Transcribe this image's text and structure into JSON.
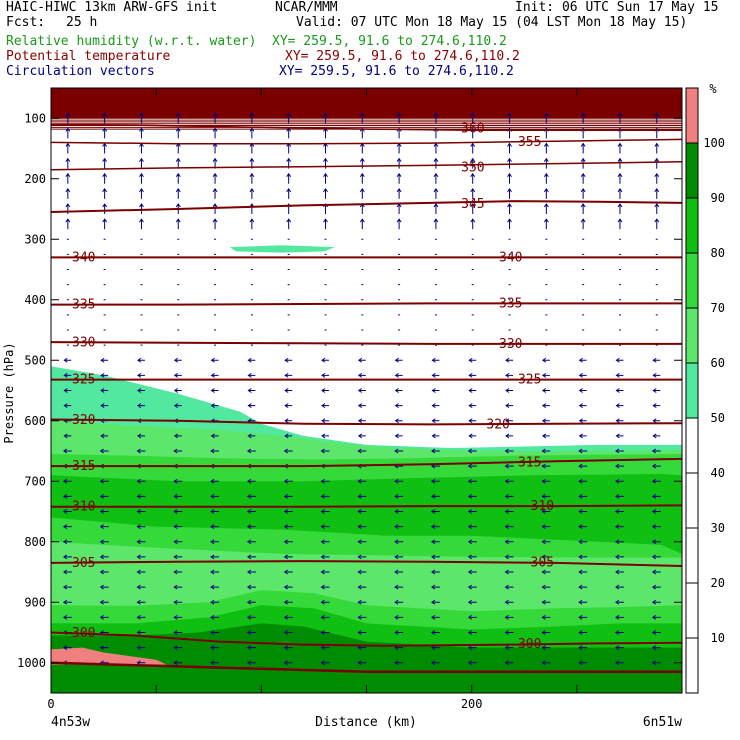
{
  "header": {
    "model": "HAIC-HIWC 13km ARW-GFS init",
    "org": "NCAR/MMM",
    "init": "Init: 06 UTC Sun 17 May 15",
    "fcst_label": "Fcst:",
    "fcst_value": "25 h",
    "valid": "Valid: 07 UTC Mon 18 May 15 (04 LST Mon 18 May 15)",
    "fields": [
      {
        "name": "Relative humidity (w.r.t. water)",
        "xy": "XY= 259.5, 91.6 to 274.6,110.2",
        "color": "#1a9a1a"
      },
      {
        "name": "Potential temperature",
        "xy": "XY= 259.5, 91.6 to 274.6,110.2",
        "color": "#8b0000"
      },
      {
        "name": "Circulation vectors",
        "xy": "XY= 259.5, 91.6 to 274.6,110.2",
        "color": "#000080"
      }
    ]
  },
  "chart_data": {
    "type": "heatmap",
    "title": "",
    "xlabel": "Distance (km)",
    "ylabel": "Pressure (hPa)",
    "xlim": [
      0,
      300
    ],
    "ylim": [
      1050,
      50
    ],
    "x_ticks": [
      0,
      200
    ],
    "y_ticks": [
      100,
      200,
      300,
      400,
      500,
      600,
      700,
      800,
      900,
      1000
    ],
    "x_endpoints": {
      "left": "4n53w",
      "right": "6n51w"
    },
    "colorbar": {
      "unit": "%",
      "ticks": [
        10,
        20,
        30,
        40,
        50,
        60,
        70,
        80,
        90,
        100
      ],
      "bands": [
        {
          "from": 50,
          "to": 60,
          "color": "#52e8a0"
        },
        {
          "from": 60,
          "to": 70,
          "color": "#5ce66a"
        },
        {
          "from": 70,
          "to": 80,
          "color": "#36d93a"
        },
        {
          "from": 80,
          "to": 90,
          "color": "#0fbf12"
        },
        {
          "from": 90,
          "to": 100,
          "color": "#008c00"
        },
        {
          "from": 100,
          "to": 110,
          "color": "#f08080"
        }
      ]
    },
    "rh_regions": [
      {
        "range": "50-60",
        "color": "#52e8a0",
        "points": [
          [
            0,
            510
          ],
          [
            25,
            525
          ],
          [
            60,
            555
          ],
          [
            90,
            585
          ],
          [
            100,
            605
          ],
          [
            120,
            625
          ],
          [
            150,
            640
          ],
          [
            190,
            645
          ],
          [
            220,
            643
          ],
          [
            260,
            640
          ],
          [
            300,
            640
          ],
          [
            300,
            1050
          ],
          [
            0,
            1050
          ]
        ]
      },
      {
        "range": "60-70",
        "color": "#5ce66a",
        "points": [
          [
            0,
            600
          ],
          [
            40,
            608
          ],
          [
            80,
            615
          ],
          [
            110,
            625
          ],
          [
            150,
            642
          ],
          [
            200,
            650
          ],
          [
            250,
            650
          ],
          [
            300,
            648
          ],
          [
            300,
            1050
          ],
          [
            0,
            1050
          ]
        ]
      },
      {
        "range": "70-80",
        "color": "#36d93a",
        "points": [
          [
            0,
            655
          ],
          [
            40,
            658
          ],
          [
            80,
            662
          ],
          [
            130,
            664
          ],
          [
            170,
            662
          ],
          [
            220,
            658
          ],
          [
            260,
            656
          ],
          [
            300,
            655
          ],
          [
            300,
            1050
          ],
          [
            0,
            1050
          ]
        ]
      },
      {
        "range": "80-90",
        "color": "#0fbf12",
        "points": [
          [
            0,
            690
          ],
          [
            60,
            700
          ],
          [
            120,
            700
          ],
          [
            170,
            695
          ],
          [
            230,
            690
          ],
          [
            290,
            688
          ],
          [
            300,
            690
          ],
          [
            300,
            1050
          ],
          [
            0,
            1050
          ]
        ]
      },
      {
        "range": "70-80",
        "color": "#36d93a",
        "points": [
          [
            0,
            760
          ],
          [
            50,
            775
          ],
          [
            110,
            780
          ],
          [
            160,
            790
          ],
          [
            200,
            790
          ],
          [
            230,
            795
          ],
          [
            260,
            800
          ],
          [
            290,
            805
          ],
          [
            300,
            820
          ],
          [
            300,
            1050
          ],
          [
            0,
            1050
          ]
        ]
      },
      {
        "range": "60-70",
        "color": "#5ce66a",
        "points": [
          [
            0,
            800
          ],
          [
            50,
            810
          ],
          [
            110,
            820
          ],
          [
            150,
            822
          ],
          [
            200,
            825
          ],
          [
            260,
            826
          ],
          [
            300,
            826
          ],
          [
            300,
            1050
          ],
          [
            0,
            1050
          ]
        ]
      },
      {
        "range": "70-80",
        "color": "#36d93a",
        "points": [
          [
            0,
            905
          ],
          [
            40,
            906
          ],
          [
            75,
            900
          ],
          [
            100,
            880
          ],
          [
            125,
            885
          ],
          [
            150,
            905
          ],
          [
            200,
            915
          ],
          [
            240,
            910
          ],
          [
            270,
            908
          ],
          [
            300,
            905
          ],
          [
            300,
            1050
          ],
          [
            0,
            1050
          ]
        ]
      },
      {
        "range": "80-90",
        "color": "#0fbf12",
        "points": [
          [
            0,
            935
          ],
          [
            40,
            935
          ],
          [
            75,
            925
          ],
          [
            100,
            905
          ],
          [
            125,
            910
          ],
          [
            150,
            935
          ],
          [
            200,
            945
          ],
          [
            240,
            940
          ],
          [
            270,
            935
          ],
          [
            300,
            935
          ],
          [
            300,
            1050
          ],
          [
            0,
            1050
          ]
        ]
      },
      {
        "range": "90-100",
        "color": "#008c00",
        "points": [
          [
            0,
            955
          ],
          [
            40,
            955
          ],
          [
            70,
            950
          ],
          [
            100,
            935
          ],
          [
            120,
            940
          ],
          [
            150,
            965
          ],
          [
            200,
            975
          ],
          [
            300,
            975
          ],
          [
            300,
            1050
          ],
          [
            0,
            1050
          ]
        ]
      },
      {
        "range": "100-110",
        "color": "#f08080",
        "points": [
          [
            0,
            978
          ],
          [
            15,
            975
          ],
          [
            25,
            983
          ],
          [
            50,
            995
          ],
          [
            55,
            1003
          ],
          [
            0,
            1003
          ]
        ]
      }
    ],
    "rh_islands": [
      {
        "range": "50-60",
        "color": "#52e8a0",
        "points": [
          [
            85,
            313
          ],
          [
            110,
            310
          ],
          [
            135,
            313
          ],
          [
            130,
            320
          ],
          [
            110,
            322
          ],
          [
            88,
            320
          ]
        ]
      },
      {
        "range": "90-100",
        "color": "#008c00",
        "points": [
          [
            300,
            980
          ],
          [
            300,
            1050
          ],
          [
            0,
            1050
          ],
          [
            0,
            1030
          ]
        ]
      }
    ],
    "upper_dark": {
      "color": "#7a0000",
      "p_top": 50,
      "p_bottom": 100
    },
    "upper_isotherms": [
      {
        "label": "360",
        "points": [
          [
            0,
            110
          ],
          [
            50,
            112
          ],
          [
            100,
            115
          ],
          [
            150,
            118
          ],
          [
            200,
            120
          ],
          [
            250,
            120
          ],
          [
            300,
            120
          ]
        ]
      },
      {
        "label": "355",
        "points": [
          [
            0,
            140
          ],
          [
            60,
            142
          ],
          [
            120,
            142
          ],
          [
            180,
            141
          ],
          [
            240,
            138
          ],
          [
            300,
            135
          ]
        ]
      },
      {
        "label": "350",
        "points": [
          [
            0,
            185
          ],
          [
            60,
            182
          ],
          [
            120,
            180
          ],
          [
            180,
            178
          ],
          [
            240,
            175
          ],
          [
            300,
            172
          ]
        ]
      }
    ],
    "isotherms": [
      {
        "label": "345",
        "points": [
          [
            0,
            255
          ],
          [
            60,
            250
          ],
          [
            120,
            244
          ],
          [
            180,
            240
          ],
          [
            220,
            237
          ],
          [
            260,
            238
          ],
          [
            300,
            240
          ]
        ]
      },
      {
        "label": "340",
        "points": [
          [
            0,
            330
          ],
          [
            60,
            330
          ],
          [
            120,
            330
          ],
          [
            180,
            330
          ],
          [
            240,
            330
          ],
          [
            300,
            330
          ]
        ]
      },
      {
        "label": "335",
        "points": [
          [
            0,
            408
          ],
          [
            60,
            408
          ],
          [
            120,
            407
          ],
          [
            180,
            406
          ],
          [
            240,
            406
          ],
          [
            300,
            406
          ]
        ]
      },
      {
        "label": "330",
        "points": [
          [
            0,
            470
          ],
          [
            60,
            471
          ],
          [
            120,
            472
          ],
          [
            180,
            473
          ],
          [
            240,
            473
          ],
          [
            300,
            473
          ]
        ]
      },
      {
        "label": "325",
        "points": [
          [
            0,
            532
          ],
          [
            60,
            532
          ],
          [
            120,
            532
          ],
          [
            180,
            532
          ],
          [
            240,
            532
          ],
          [
            300,
            532
          ]
        ]
      },
      {
        "label": "320",
        "points": [
          [
            0,
            598
          ],
          [
            60,
            600
          ],
          [
            120,
            605
          ],
          [
            180,
            606
          ],
          [
            240,
            605
          ],
          [
            300,
            604
          ]
        ]
      },
      {
        "label": "315",
        "points": [
          [
            0,
            675
          ],
          [
            60,
            675
          ],
          [
            120,
            675
          ],
          [
            180,
            672
          ],
          [
            240,
            667
          ],
          [
            300,
            663
          ]
        ]
      },
      {
        "label": "310",
        "points": [
          [
            0,
            742
          ],
          [
            60,
            742
          ],
          [
            120,
            742
          ],
          [
            180,
            741
          ],
          [
            240,
            741
          ],
          [
            300,
            740
          ]
        ]
      },
      {
        "label": "305",
        "points": [
          [
            0,
            835
          ],
          [
            60,
            833
          ],
          [
            120,
            832
          ],
          [
            180,
            833
          ],
          [
            240,
            835
          ],
          [
            300,
            840
          ]
        ]
      },
      {
        "label": "300",
        "points": [
          [
            0,
            950
          ],
          [
            40,
            955
          ],
          [
            80,
            965
          ],
          [
            120,
            970
          ],
          [
            160,
            972
          ],
          [
            220,
            970
          ],
          [
            260,
            968
          ],
          [
            300,
            967
          ]
        ]
      },
      {
        "label": "",
        "points": [
          [
            0,
            1000
          ],
          [
            50,
            1005
          ],
          [
            100,
            1010
          ],
          [
            150,
            1015
          ],
          [
            200,
            1015
          ],
          [
            250,
            1015
          ],
          [
            300,
            1015
          ]
        ]
      }
    ],
    "iso_label_positions": {
      "360": [
        195,
        117
      ],
      "355": [
        222,
        139
      ],
      "350": [
        195,
        181
      ],
      "345": [
        195,
        242
      ],
      "340": [
        [
          10,
          330
        ],
        [
          213,
          330
        ]
      ],
      "335": [
        [
          10,
          408
        ],
        [
          213,
          406
        ]
      ],
      "330": [
        [
          10,
          471
        ],
        [
          213,
          473
        ]
      ],
      "325": [
        [
          10,
          532
        ],
        [
          222,
          532
        ]
      ],
      "320": [
        [
          10,
          599
        ],
        [
          207,
          606
        ]
      ],
      "315": [
        [
          10,
          675
        ],
        [
          222,
          669
        ]
      ],
      "310": [
        [
          10,
          742
        ],
        [
          228,
          741
        ]
      ],
      "305": [
        [
          10,
          835
        ],
        [
          228,
          834
        ]
      ],
      "300": [
        [
          10,
          951
        ],
        [
          222,
          969
        ]
      ]
    },
    "vectors": {
      "direction": "westward",
      "upper": "northward",
      "color": "#000080"
    }
  }
}
